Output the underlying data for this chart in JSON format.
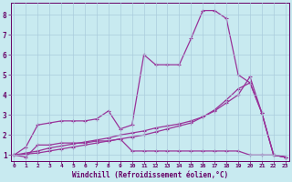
{
  "xlabel": "Windchill (Refroidissement éolien,°C)",
  "bg_color": "#c8eaf0",
  "line_color": "#993399",
  "grid_color": "#aaccdd",
  "x_ticks": [
    0,
    1,
    2,
    3,
    4,
    5,
    6,
    7,
    8,
    9,
    10,
    11,
    12,
    13,
    14,
    15,
    16,
    17,
    18,
    19,
    20,
    21,
    22,
    23
  ],
  "y_ticks": [
    1,
    2,
    3,
    4,
    5,
    6,
    7,
    8
  ],
  "xlim": [
    -0.3,
    23.3
  ],
  "ylim": [
    0.7,
    8.6
  ],
  "series": {
    "line1_x": [
      0,
      1,
      2,
      3,
      4,
      5,
      6,
      7,
      8,
      9,
      10,
      11,
      12,
      13,
      14,
      15,
      16,
      17,
      18,
      19,
      20,
      21,
      22,
      23
    ],
    "line1_y": [
      1.0,
      0.9,
      1.5,
      1.5,
      1.6,
      1.6,
      1.6,
      1.7,
      1.7,
      1.8,
      1.2,
      1.2,
      1.2,
      1.2,
      1.2,
      1.2,
      1.2,
      1.2,
      1.2,
      1.2,
      1.0,
      1.0,
      1.0,
      0.9
    ],
    "line2_x": [
      0,
      1,
      2,
      3,
      4,
      5,
      6,
      7,
      8,
      9,
      10,
      11,
      12,
      13,
      14,
      15,
      16,
      17,
      18,
      19,
      20,
      21,
      22,
      23
    ],
    "line2_y": [
      1.0,
      1.1,
      1.2,
      1.35,
      1.45,
      1.55,
      1.65,
      1.75,
      1.85,
      2.0,
      2.1,
      2.2,
      2.35,
      2.45,
      2.55,
      2.7,
      2.9,
      3.2,
      3.6,
      4.0,
      4.9,
      3.1,
      1.0,
      0.9
    ],
    "line3_x": [
      0,
      1,
      2,
      3,
      4,
      5,
      6,
      7,
      8,
      9,
      10,
      11,
      12,
      13,
      14,
      15,
      16,
      17,
      18,
      19,
      20,
      21,
      22,
      23
    ],
    "line3_y": [
      1.0,
      1.05,
      1.1,
      1.2,
      1.3,
      1.4,
      1.5,
      1.6,
      1.7,
      1.8,
      1.9,
      2.0,
      2.15,
      2.3,
      2.45,
      2.6,
      2.9,
      3.25,
      3.75,
      4.3,
      4.6,
      3.1,
      1.0,
      0.9
    ],
    "line4_x": [
      0,
      1,
      2,
      3,
      4,
      5,
      6,
      7,
      8,
      9,
      10,
      11,
      12,
      13,
      14,
      15,
      16,
      17,
      18,
      19,
      20,
      21,
      22,
      23
    ],
    "line4_y": [
      1.0,
      1.4,
      2.5,
      2.6,
      2.7,
      2.7,
      2.7,
      2.8,
      3.2,
      2.3,
      2.5,
      6.0,
      5.5,
      5.5,
      5.5,
      6.8,
      8.2,
      8.2,
      7.8,
      5.0,
      4.6,
      3.1,
      1.0,
      0.9
    ]
  }
}
